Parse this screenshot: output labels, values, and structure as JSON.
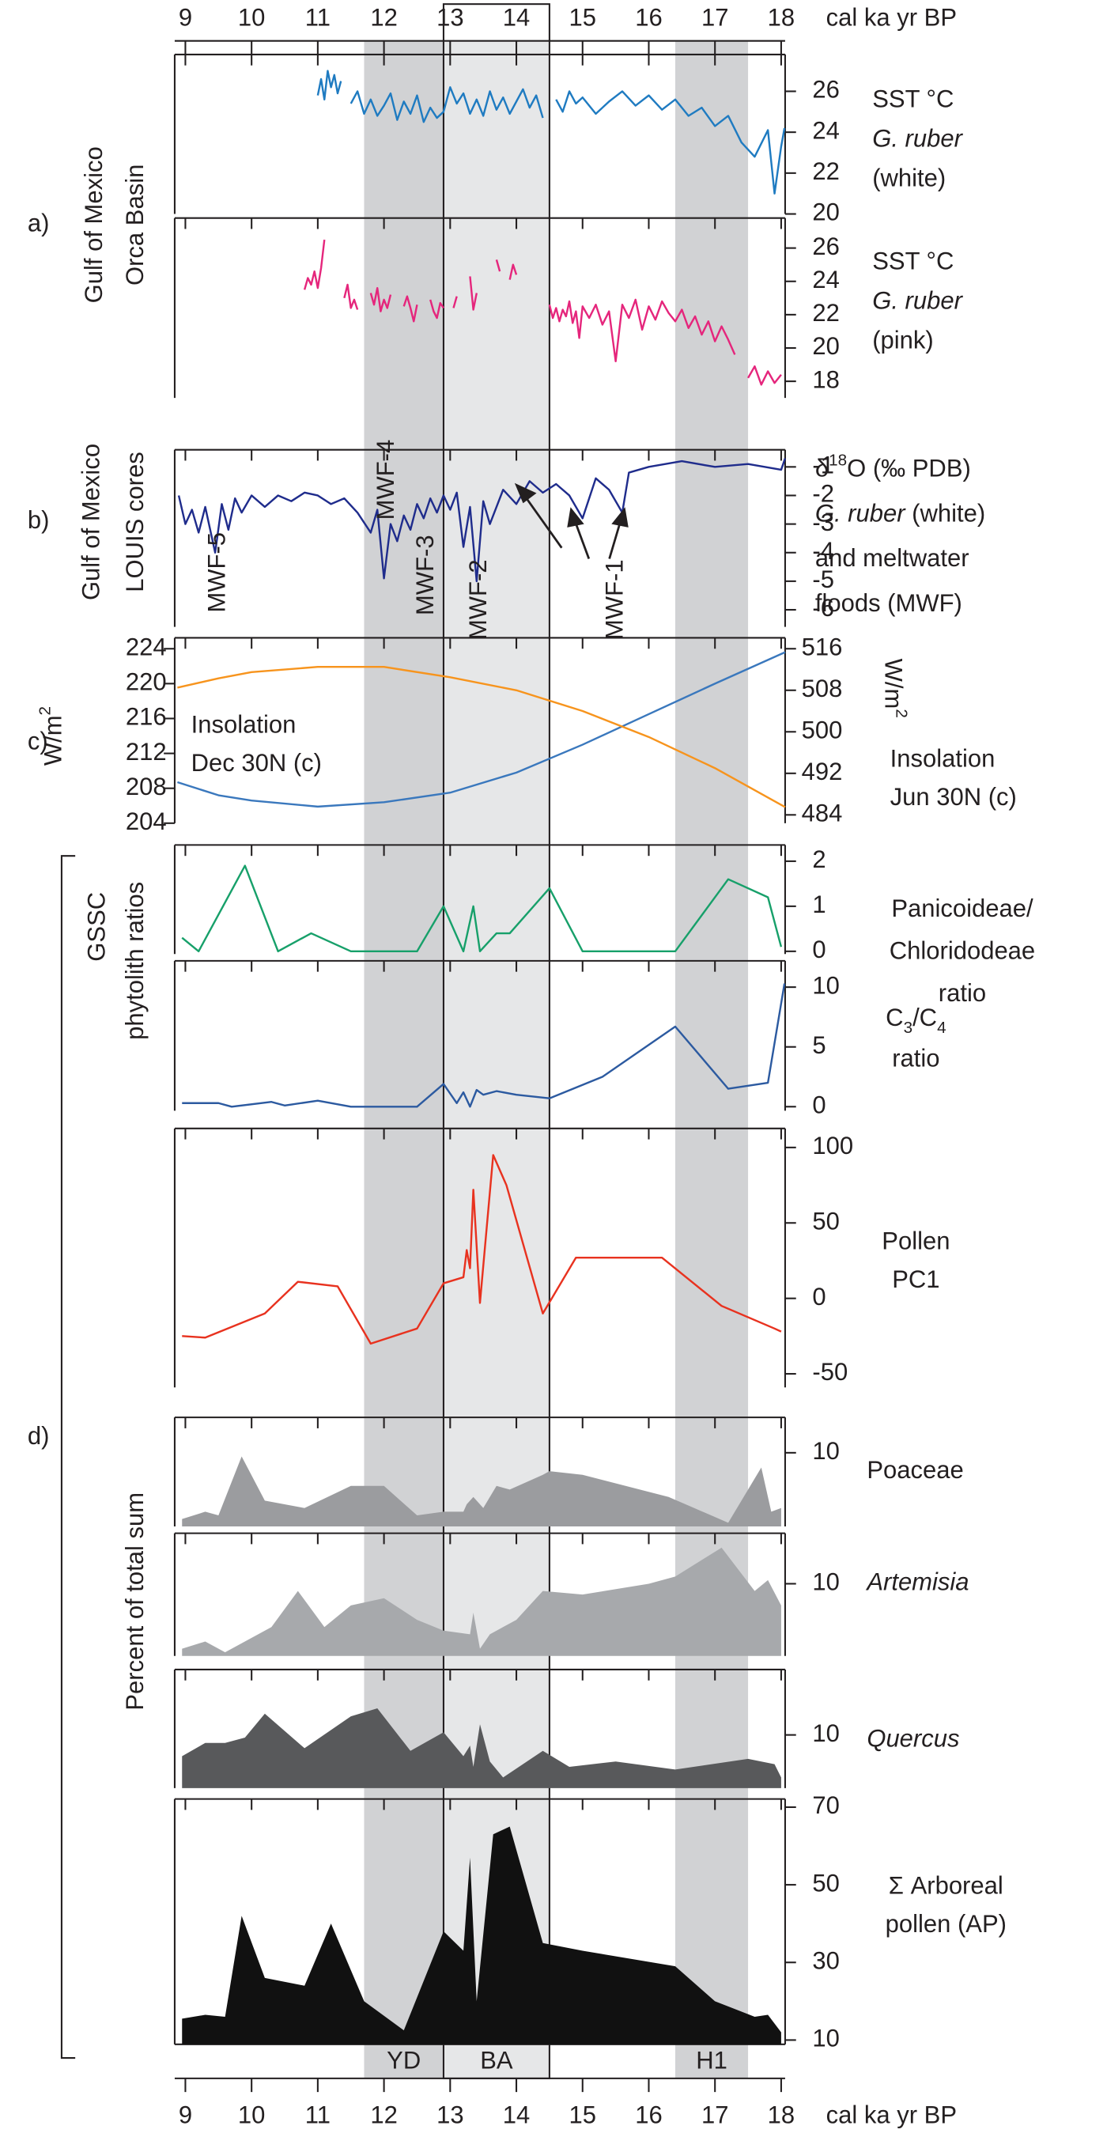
{
  "chart_data": [
    {
      "type": "frame",
      "xlabel": "cal ka yr BP",
      "xlim": [
        8.88,
        18.06
      ],
      "xticks": [
        9,
        10,
        11,
        12,
        13,
        14,
        15,
        16,
        17,
        18
      ],
      "bands": [
        {
          "label": "YD",
          "range": [
            11.7,
            12.9
          ],
          "color": "#d1d2d4",
          "outline": false
        },
        {
          "label": "BA",
          "range": [
            12.9,
            14.5
          ],
          "color": "#e6e7e8",
          "outline": true
        },
        {
          "label": "H1",
          "range": [
            16.4,
            17.5
          ],
          "color": "#d1d2d4",
          "outline": false
        }
      ],
      "left_labels": [
        "a)",
        "Gulf of Mexico",
        "Orca Basin",
        "b)",
        "Gulf of Mexico",
        "LOUIS cores",
        "c)",
        "d)",
        "GSSC",
        "phytolith ratios",
        "Percent of total sum"
      ]
    },
    {
      "type": "line",
      "label_lines": [
        [
          "SST °C"
        ],
        [
          {
            "text": "G. ruber",
            "style": "italic"
          }
        ],
        [
          "(white)"
        ]
      ],
      "x": [
        11.0,
        11.05,
        11.1,
        11.15,
        11.2,
        11.25,
        11.3,
        11.35,
        11.45,
        11.5,
        11.6,
        11.7,
        11.8,
        11.9,
        12.0,
        12.1,
        12.2,
        12.3,
        12.4,
        12.5,
        12.6,
        12.7,
        12.8,
        12.9,
        13.0,
        13.1,
        13.2,
        13.3,
        13.4,
        13.5,
        13.6,
        13.7,
        13.8,
        13.9,
        14.0,
        14.1,
        14.2,
        14.3,
        14.4,
        14.55,
        14.6,
        14.7,
        14.8,
        14.9,
        15.0,
        15.2,
        15.4,
        15.6,
        15.8,
        16.0,
        16.2,
        16.4,
        16.6,
        16.8,
        17.0,
        17.2,
        17.4,
        17.6,
        17.8,
        17.9,
        18.0,
        18.05
      ],
      "values": [
        25.8,
        26.6,
        25.6,
        27.0,
        26.2,
        26.8,
        25.9,
        26.5,
        null,
        25.4,
        26.0,
        24.9,
        25.6,
        24.8,
        25.3,
        25.9,
        24.6,
        25.5,
        24.9,
        25.8,
        24.5,
        25.2,
        24.7,
        25.0,
        26.2,
        25.4,
        25.9,
        24.9,
        25.6,
        24.8,
        26.0,
        25.1,
        25.7,
        24.9,
        25.5,
        26.1,
        25.2,
        25.8,
        24.7,
        null,
        25.6,
        25.0,
        26.0,
        25.4,
        25.7,
        24.9,
        25.5,
        26.0,
        25.3,
        25.8,
        25.1,
        25.6,
        24.8,
        25.2,
        24.3,
        24.8,
        23.5,
        22.8,
        24.1,
        21.0,
        23.3,
        24.2
      ],
      "color": "#1f7bc1",
      "ylim": [
        20,
        27.8
      ],
      "yticks": [
        20,
        22,
        24,
        26
      ]
    },
    {
      "type": "line",
      "label_lines": [
        [
          "SST °C"
        ],
        [
          {
            "text": "G. ruber",
            "style": "italic"
          }
        ],
        [
          "(pink)"
        ]
      ],
      "x": [
        10.8,
        10.85,
        10.9,
        10.95,
        11.0,
        11.05,
        11.1,
        11.25,
        11.4,
        11.45,
        11.5,
        11.55,
        11.6,
        11.7,
        11.8,
        11.85,
        11.9,
        11.95,
        12.0,
        12.05,
        12.1,
        12.2,
        12.3,
        12.35,
        12.4,
        12.45,
        12.5,
        12.6,
        12.7,
        12.75,
        12.8,
        12.85,
        12.9,
        12.98,
        13.05,
        13.1,
        13.2,
        13.3,
        13.35,
        13.4,
        13.55,
        13.7,
        13.75,
        13.82,
        13.9,
        13.95,
        14.0,
        14.25,
        14.5,
        14.55,
        14.6,
        14.65,
        14.7,
        14.75,
        14.8,
        14.85,
        14.9,
        14.95,
        15.0,
        15.1,
        15.2,
        15.3,
        15.4,
        15.5,
        15.6,
        15.7,
        15.8,
        15.9,
        16.0,
        16.1,
        16.2,
        16.3,
        16.4,
        16.5,
        16.6,
        16.7,
        16.8,
        16.9,
        17.0,
        17.1,
        17.2,
        17.3,
        17.4,
        17.5,
        17.6,
        17.7,
        17.8,
        17.9,
        18.0
      ],
      "values": [
        23.5,
        24.2,
        23.8,
        24.6,
        23.6,
        24.8,
        26.5,
        null,
        23.0,
        23.8,
        22.4,
        22.9,
        22.3,
        null,
        23.3,
        22.6,
        23.6,
        22.2,
        22.9,
        22.4,
        23.2,
        null,
        22.5,
        23.1,
        22.4,
        21.6,
        22.6,
        null,
        22.9,
        22.2,
        21.8,
        22.7,
        22.4,
        null,
        22.4,
        23.1,
        null,
        24.3,
        22.3,
        23.3,
        null,
        25.3,
        24.6,
        null,
        24.1,
        25.0,
        24.4,
        null,
        22.6,
        21.8,
        22.4,
        21.6,
        22.3,
        21.9,
        22.8,
        21.5,
        22.2,
        20.6,
        22.5,
        21.8,
        22.6,
        21.4,
        22.2,
        19.2,
        22.6,
        21.8,
        22.9,
        21.1,
        22.5,
        21.7,
        22.8,
        22.1,
        21.6,
        22.3,
        21.2,
        21.9,
        20.8,
        21.6,
        20.4,
        21.3,
        20.5,
        19.6,
        null,
        18.2,
        18.9,
        17.8,
        18.6,
        17.9,
        18.4
      ],
      "color": "#e5267c",
      "ylim": [
        17,
        27.8
      ],
      "yticks": [
        18,
        20,
        22,
        24,
        26
      ]
    },
    {
      "type": "line",
      "label_lines": [
        [
          "δ",
          {
            "text": "18",
            "style": "sup"
          },
          "O (‰ PDB)"
        ],
        [
          {
            "text": "G. ruber",
            "style": "italic"
          },
          " (white)"
        ],
        [
          "and  meltwater"
        ],
        [
          "floods (MWF)"
        ]
      ],
      "annotations": [
        "MWF-5",
        "MWF-4",
        "MWF-3",
        "MWF-2",
        "MWF-1"
      ],
      "x": [
        8.9,
        9.0,
        9.1,
        9.2,
        9.3,
        9.45,
        9.55,
        9.65,
        9.75,
        9.85,
        10.0,
        10.2,
        10.4,
        10.6,
        10.8,
        11.0,
        11.2,
        11.4,
        11.6,
        11.8,
        11.9,
        12.0,
        12.1,
        12.2,
        12.3,
        12.4,
        12.5,
        12.6,
        12.7,
        12.8,
        12.9,
        13.0,
        13.1,
        13.2,
        13.3,
        13.4,
        13.5,
        13.6,
        13.8,
        14.0,
        14.2,
        14.4,
        14.6,
        14.8,
        15.0,
        15.2,
        15.4,
        15.6,
        15.7,
        16.0,
        16.5,
        17.0,
        17.5,
        18.0,
        18.06
      ],
      "values": [
        -2.0,
        -3.0,
        -2.5,
        -3.3,
        -2.4,
        -4.0,
        -2.3,
        -3.2,
        -2.1,
        -2.6,
        -2.0,
        -2.4,
        -2.0,
        -2.2,
        -1.9,
        -2.0,
        -2.3,
        -2.1,
        -2.6,
        -3.3,
        -2.5,
        -4.9,
        -3.0,
        -3.6,
        -2.7,
        -3.2,
        -2.3,
        -2.8,
        -2.1,
        -2.6,
        -2.0,
        -2.5,
        -1.9,
        -3.8,
        -2.4,
        -5.0,
        -2.2,
        -3.0,
        -1.8,
        -2.3,
        -1.5,
        -1.9,
        -1.6,
        -2.0,
        -2.8,
        -1.4,
        -1.8,
        -2.6,
        -1.2,
        -1.0,
        -0.8,
        -1.0,
        -0.9,
        -1.1,
        -0.7
      ],
      "color": "#1f2c8c",
      "ylim": [
        -6.6,
        -0.4
      ],
      "yticks": [
        -6,
        -5,
        -4,
        -3,
        -2,
        -1
      ]
    },
    {
      "type": "line",
      "ylabel": [
        "W/m",
        {
          "text": "2",
          "style": "sup"
        }
      ],
      "y2label": [
        "W/m",
        {
          "text": "2",
          "style": "sup"
        }
      ],
      "x": [
        8.88,
        9.5,
        10,
        11,
        12,
        13,
        14,
        15,
        16,
        17,
        18.06
      ],
      "series": [
        {
          "name": [
            "Insolation",
            "Dec 30N (c)"
          ],
          "color": "#3a78bd",
          "values": [
            208.7,
            207.2,
            206.6,
            205.9,
            206.4,
            207.5,
            209.8,
            213,
            216.5,
            220,
            223.6
          ]
        },
        {
          "name": [
            "Insolation",
            "Jun 30N (c)"
          ],
          "color": "#f7941d",
          "axis": "y2",
          "values": [
            508.5,
            510.3,
            511.5,
            512.5,
            512.5,
            510.5,
            508,
            504,
            499,
            493,
            485.5
          ]
        }
      ],
      "ylim": [
        204,
        225.25
      ],
      "yticks": [
        204,
        208,
        212,
        216,
        220,
        224
      ],
      "y2lim": [
        482.4,
        518.1
      ],
      "y2ticks": [
        484,
        492,
        500,
        508,
        516
      ]
    },
    {
      "type": "line",
      "label_lines": [
        [
          "Panicoideae/"
        ],
        [
          "Chloridodeae"
        ],
        [
          "ratio"
        ]
      ],
      "x": [
        8.95,
        9.2,
        9.9,
        10.4,
        10.9,
        11.5,
        12.0,
        12.5,
        12.9,
        13.2,
        13.35,
        13.45,
        13.7,
        13.9,
        14.5,
        15.0,
        16.4,
        17.2,
        17.8,
        18.0
      ],
      "values": [
        0.3,
        0.0,
        1.9,
        0.0,
        0.4,
        0.0,
        0.0,
        0.0,
        1.0,
        0.0,
        1.0,
        0.0,
        0.4,
        0.4,
        1.4,
        0.0,
        0.0,
        1.6,
        1.2,
        0.1
      ],
      "color": "#17a06a",
      "ylim": [
        -0.06,
        2.36
      ],
      "yticks": [
        0,
        1,
        2
      ]
    },
    {
      "type": "line",
      "label_lines": [
        [
          "C",
          {
            "text": "3",
            "style": "sub"
          },
          "/C",
          {
            "text": "4",
            "style": "sub"
          }
        ],
        [
          "ratio"
        ]
      ],
      "x": [
        8.95,
        9.5,
        9.7,
        10.3,
        10.5,
        11.0,
        11.5,
        12.0,
        12.5,
        12.9,
        13.1,
        13.2,
        13.3,
        13.4,
        13.5,
        13.7,
        14.0,
        14.5,
        15.3,
        16.4,
        17.2,
        17.8,
        18.05
      ],
      "values": [
        0.3,
        0.3,
        0.0,
        0.4,
        0.1,
        0.5,
        0.0,
        0.0,
        0.0,
        1.9,
        0.3,
        1.2,
        0.0,
        1.4,
        1.0,
        1.3,
        1.0,
        0.7,
        2.5,
        6.7,
        1.5,
        2.0,
        10.3
      ],
      "color": "#2c5aa0",
      "ylim": [
        -0.34,
        12.2
      ],
      "yticks": [
        0,
        5,
        10
      ]
    },
    {
      "type": "line",
      "label_lines": [
        [
          "Pollen"
        ],
        [
          "PC1"
        ]
      ],
      "x": [
        8.95,
        9.3,
        10.2,
        10.7,
        11.3,
        11.8,
        12.5,
        12.9,
        13.2,
        13.25,
        13.3,
        13.35,
        13.45,
        13.65,
        13.85,
        14.4,
        14.9,
        16.2,
        17.1,
        17.9,
        18.0
      ],
      "values": [
        -25,
        -26,
        -10,
        11,
        8,
        -30,
        -20,
        10,
        14,
        32,
        20,
        72,
        -3,
        95,
        75,
        -10,
        27,
        27,
        -5,
        -20,
        -22
      ],
      "color": "#e8321f",
      "ylim": [
        -59,
        112.6
      ],
      "yticks": [
        -50,
        0,
        50,
        100
      ]
    },
    {
      "type": "area",
      "label_lines": [
        [
          "Poaceae"
        ]
      ],
      "x": [
        8.95,
        9.3,
        9.5,
        9.85,
        10.2,
        10.8,
        11.5,
        12.0,
        12.5,
        12.9,
        13.2,
        13.25,
        13.35,
        13.5,
        13.7,
        13.9,
        14.4,
        14.5,
        15.0,
        16.3,
        17.2,
        17.7,
        17.85,
        18.0
      ],
      "values": [
        1,
        2,
        1.5,
        9.5,
        3.5,
        2.5,
        5.5,
        5.5,
        1.5,
        2,
        2,
        3,
        4,
        2.5,
        5.5,
        5,
        7,
        7.5,
        7,
        4,
        0.5,
        8,
        2,
        2.5
      ],
      "color": "#9b9c9f",
      "ylim": [
        0,
        14.8
      ],
      "yticks": [
        10
      ]
    },
    {
      "type": "area",
      "label_lines": [
        [
          {
            "text": "Artemisia",
            "style": "italic"
          }
        ]
      ],
      "x": [
        8.95,
        9.3,
        9.6,
        10.3,
        10.7,
        11.1,
        11.5,
        12.0,
        12.5,
        12.9,
        13.3,
        13.35,
        13.45,
        13.6,
        14.0,
        14.4,
        15.0,
        16.0,
        16.4,
        17.1,
        17.6,
        17.8,
        18.0
      ],
      "values": [
        1,
        2,
        0.5,
        4,
        9,
        4,
        7,
        8,
        5,
        3.5,
        3,
        6,
        1,
        3,
        5,
        9,
        8.5,
        10,
        11,
        15,
        9,
        10.5,
        7
      ],
      "color": "#a7a9ac",
      "ylim": [
        0,
        17
      ],
      "yticks": [
        10
      ]
    },
    {
      "type": "area",
      "label_lines": [
        [
          {
            "text": "Quercus",
            "style": "italic"
          }
        ]
      ],
      "x": [
        8.95,
        9.3,
        9.6,
        9.9,
        10.2,
        10.8,
        11.5,
        11.9,
        12.4,
        12.9,
        13.2,
        13.3,
        13.35,
        13.45,
        13.6,
        13.8,
        14.4,
        14.8,
        15.5,
        16.4,
        17.5,
        17.9,
        18.0
      ],
      "values": [
        6,
        8.5,
        8.5,
        9.5,
        14,
        7.5,
        13.5,
        15,
        7,
        10.5,
        6,
        8,
        4,
        12,
        5,
        2,
        7,
        4,
        5,
        3.5,
        5.5,
        4.5,
        2
      ],
      "color": "#58595b",
      "ylim": [
        0,
        22.3
      ],
      "yticks": [
        10
      ]
    },
    {
      "type": "area",
      "label_lines": [
        [
          "Σ Arboreal"
        ],
        [
          "pollen (AP)"
        ]
      ],
      "x": [
        8.95,
        9.3,
        9.6,
        9.85,
        10.2,
        10.8,
        11.2,
        11.7,
        12.3,
        12.9,
        13.2,
        13.3,
        13.4,
        13.65,
        13.9,
        14.4,
        15.0,
        16.4,
        17.0,
        17.6,
        17.8,
        18.0
      ],
      "values": [
        15.5,
        16.5,
        16,
        42,
        26,
        24,
        40,
        20,
        12.5,
        38,
        33,
        57,
        20,
        63,
        65,
        35,
        33,
        29,
        20,
        16,
        16.5,
        12
      ],
      "color": "#111111",
      "ylim": [
        8.9,
        72.1
      ],
      "yticks": [
        10,
        30,
        50,
        70
      ]
    }
  ]
}
